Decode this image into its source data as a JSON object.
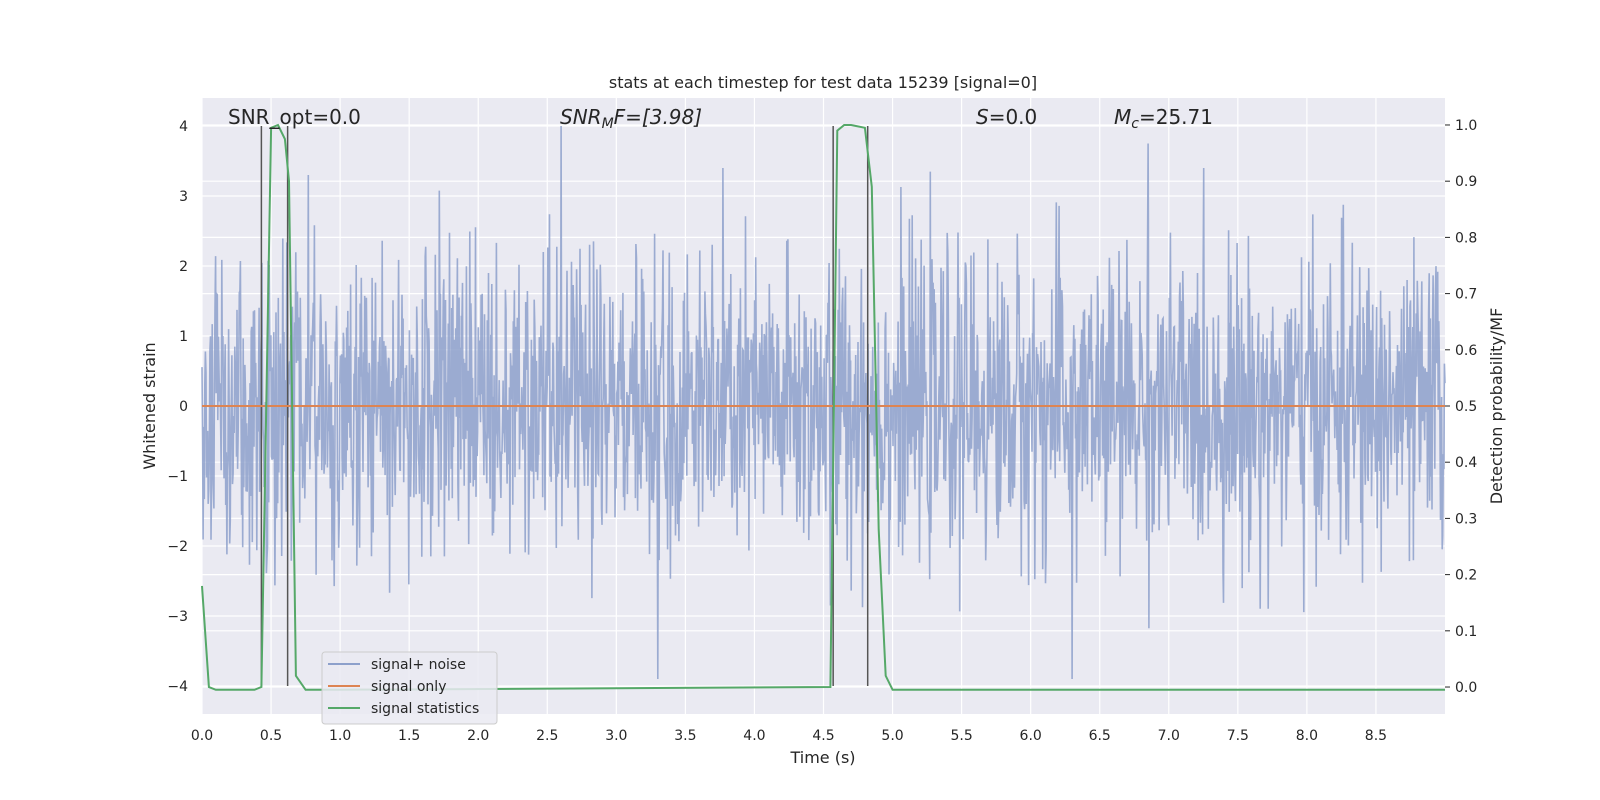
{
  "chart_data": {
    "type": "line",
    "title": "stats at each timestep for test data 15239 [signal=0]",
    "xlabel": "Time (s)",
    "ylabel": "Whitened strain",
    "y2label": "Detection probability/MF",
    "xlim": [
      0.0,
      9.0
    ],
    "ylim": [
      -4.4,
      4.4
    ],
    "y2lim": [
      -0.048,
      1.048
    ],
    "grid": true,
    "legend_position": "lower-left",
    "x_ticks": [
      "0.0",
      "0.5",
      "1.0",
      "1.5",
      "2.0",
      "2.5",
      "3.0",
      "3.5",
      "4.0",
      "4.5",
      "5.0",
      "5.5",
      "6.0",
      "6.5",
      "7.0",
      "7.5",
      "8.0",
      "8.5"
    ],
    "y_ticks": [
      "4",
      "3",
      "2",
      "1",
      "0",
      "−1",
      "−2",
      "−3",
      "−4"
    ],
    "y2_ticks": [
      "1.0",
      "0.9",
      "0.8",
      "0.7",
      "0.6",
      "0.5",
      "0.4",
      "0.3",
      "0.2",
      "0.1",
      "0.0"
    ],
    "annotations": {
      "snr_opt": "SNR_opt=0.0",
      "snr_mf_base": "SNR",
      "snr_mf_sub": "M",
      "snr_mf_rest": "F=[3.98]",
      "s_var": "S",
      "s_rest": "=0.0",
      "mc_var": "M",
      "mc_sub": "c",
      "mc_rest": "=25.71"
    },
    "series": [
      {
        "name": "signal+ noise",
        "color": "#8da0cb",
        "description_of_values": "dense whitened noise, amplitude roughly within ±4",
        "spike_values": [
          {
            "x": 2.6,
            "y": 4.0
          },
          {
            "x": 6.85,
            "y": 3.75
          },
          {
            "x": 0.77,
            "y": 3.3
          },
          {
            "x": 3.3,
            "y": -3.9
          },
          {
            "x": 6.3,
            "y": -3.9
          },
          {
            "x": 4.55,
            "y": -2.85
          }
        ]
      },
      {
        "name": "signal only",
        "color": "#dd8452",
        "x": [
          0.0,
          9.0
        ],
        "y": [
          0.0,
          0.0
        ]
      },
      {
        "name": "signal statistics",
        "color": "#55a868",
        "axis": "right",
        "x": [
          0.0,
          0.05,
          0.1,
          0.38,
          0.43,
          0.5,
          0.55,
          0.6,
          0.63,
          0.68,
          0.75,
          1.0,
          4.55,
          4.6,
          4.65,
          4.7,
          4.8,
          4.85,
          4.9,
          4.95,
          5.0,
          9.0
        ],
        "y": [
          0.18,
          0.0,
          -0.005,
          -0.005,
          0.0,
          0.995,
          1.0,
          0.975,
          0.9,
          0.02,
          -0.005,
          -0.005,
          0.0,
          0.99,
          1.0,
          1.0,
          0.995,
          0.89,
          0.28,
          0.02,
          -0.005,
          -0.005
        ]
      }
    ],
    "vertical_lines": [
      0.43,
      0.62,
      4.57,
      4.82
    ],
    "legend": [
      "signal+ noise",
      "signal only",
      "signal statistics"
    ]
  }
}
